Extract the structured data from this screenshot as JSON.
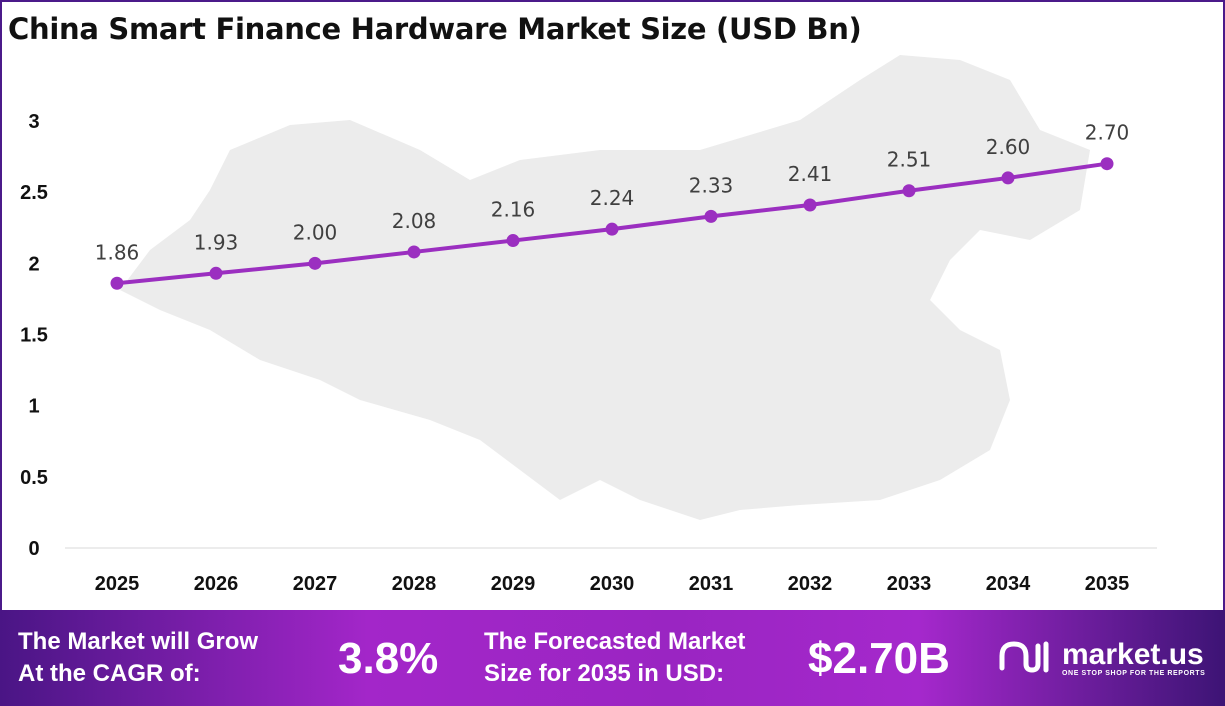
{
  "chart_data": {
    "type": "line",
    "title": "China Smart Finance Hardware Market Size (USD Bn)",
    "categories": [
      "2025",
      "2026",
      "2027",
      "2028",
      "2029",
      "2030",
      "2031",
      "2032",
      "2033",
      "2034",
      "2035"
    ],
    "series": [
      {
        "name": "Market Size",
        "values": [
          1.86,
          1.93,
          2.0,
          2.08,
          2.16,
          2.24,
          2.33,
          2.41,
          2.51,
          2.6,
          2.7
        ],
        "labels": [
          "1.86",
          "1.93",
          "2.00",
          "2.08",
          "2.16",
          "2.24",
          "2.33",
          "2.41",
          "2.51",
          "2.60",
          "2.70"
        ]
      }
    ],
    "yticks": [
      "0",
      "0.5",
      "1",
      "1.5",
      "2",
      "2.5",
      "3"
    ],
    "ylim": [
      0,
      3
    ],
    "xlabel": "",
    "ylabel": "",
    "grid": false,
    "line_color": "#9b2fc0"
  },
  "footer": {
    "cagr_label_1": "The Market will Grow",
    "cagr_label_2": "At the CAGR of:",
    "cagr_value": "3.8%",
    "forecast_label_1": "The Forecasted Market",
    "forecast_label_2": "Size for 2035 in USD:",
    "forecast_value": "$2.70B",
    "brand_name": "market.us",
    "brand_tagline": "ONE STOP SHOP FOR THE REPORTS"
  }
}
